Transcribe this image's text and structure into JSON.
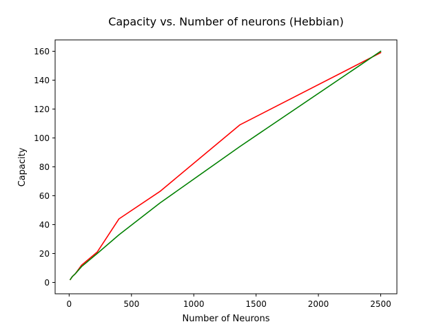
{
  "chart_data": {
    "type": "line",
    "title": "Capacity vs. Number of neurons (Hebbian)",
    "xlabel": "Number of Neurons",
    "ylabel": "Capacity",
    "xlim": [
      -112.5,
      2630
    ],
    "ylim": [
      -7.85,
      167.85
    ],
    "xticks": [
      0,
      500,
      1000,
      1500,
      2000,
      2500
    ],
    "yticks": [
      0,
      20,
      40,
      60,
      80,
      100,
      120,
      140,
      160
    ],
    "grid": false,
    "legend": "none",
    "series": [
      {
        "color": "#ff0000",
        "x": [
          9,
          25,
          49,
          100,
          225,
          400,
          729,
          1369,
          2500
        ],
        "y": [
          2,
          4,
          6,
          12,
          21,
          44,
          63,
          109,
          159
        ]
      },
      {
        "color": "#008000",
        "x": [
          9,
          25,
          49,
          100,
          225,
          400,
          729,
          1369,
          2500
        ],
        "y": [
          2,
          4,
          6,
          11,
          20,
          33,
          55,
          94,
          160
        ]
      }
    ]
  }
}
